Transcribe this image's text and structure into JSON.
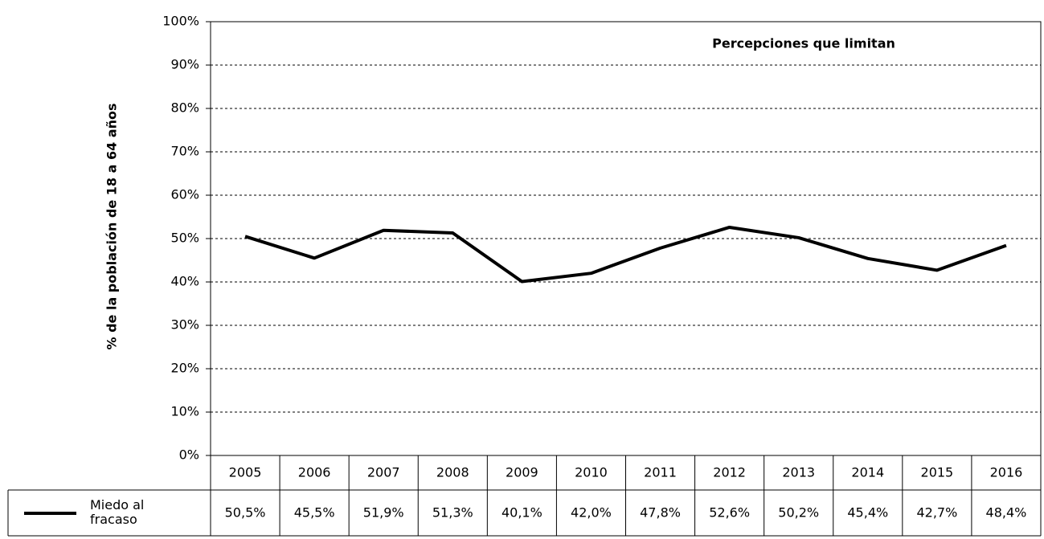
{
  "chart_data": {
    "type": "line",
    "title": "Percepciones que limitan",
    "y_label": "% de la población de 18 a 64 años",
    "categories": [
      "2005",
      "2006",
      "2007",
      "2008",
      "2009",
      "2010",
      "2011",
      "2012",
      "2013",
      "2014",
      "2015",
      "2016"
    ],
    "series": [
      {
        "name": "Miedo al fracaso",
        "color": "#000000",
        "values": [
          50.5,
          45.5,
          51.9,
          51.3,
          40.1,
          42.0,
          47.8,
          52.6,
          50.2,
          45.4,
          42.7,
          48.4
        ],
        "value_labels": [
          "50,5%",
          "45,5%",
          "51,9%",
          "51,3%",
          "40,1%",
          "42,0%",
          "47,8%",
          "52,6%",
          "50,2%",
          "45,4%",
          "42,7%",
          "48,4%"
        ]
      }
    ],
    "ylim": [
      0,
      100
    ],
    "yticks": [
      {
        "value": 0,
        "label": "0%"
      },
      {
        "value": 10,
        "label": "10%"
      },
      {
        "value": 20,
        "label": "20%"
      },
      {
        "value": 30,
        "label": "30%"
      },
      {
        "value": 40,
        "label": "40%"
      },
      {
        "value": 50,
        "label": "50%"
      },
      {
        "value": 60,
        "label": "60%"
      },
      {
        "value": 70,
        "label": "70%"
      },
      {
        "value": 80,
        "label": "80%"
      },
      {
        "value": 90,
        "label": "90%"
      },
      {
        "value": 100,
        "label": "100%"
      }
    ],
    "grid": true
  }
}
